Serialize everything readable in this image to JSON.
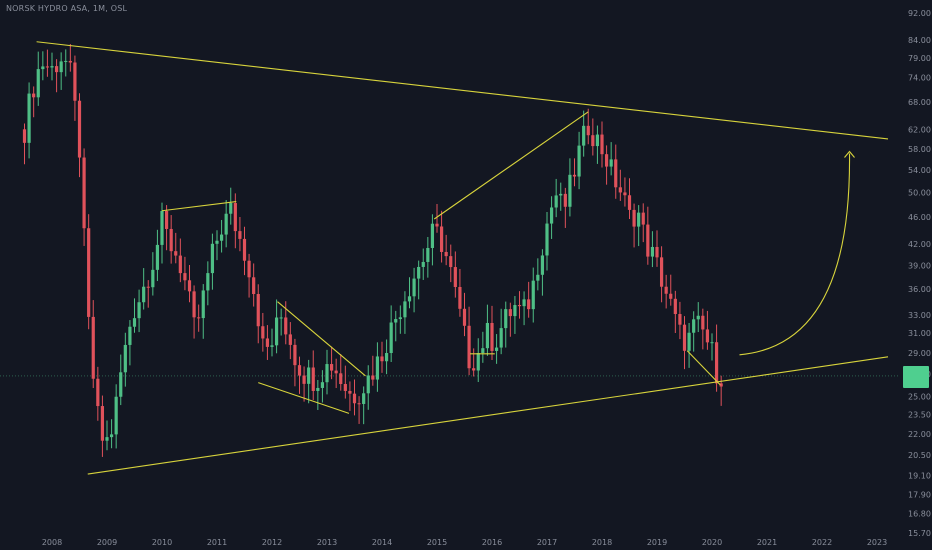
{
  "header": {
    "title": "NORSK HYDRO ASA, 1M, OSL"
  },
  "colors": {
    "background": "#131722",
    "up": "#4fbf86",
    "down": "#e0525b",
    "trendline": "#d8d43c",
    "price_line": "#4fbf86"
  },
  "chart_data": {
    "type": "candlestick",
    "title": "NORSK HYDRO ASA, 1M, OSL",
    "x_tick_labels": [
      "2008",
      "2009",
      "2010",
      "2011",
      "2012",
      "2013",
      "2014",
      "2015",
      "2016",
      "2017",
      "2018",
      "2019",
      "2020",
      "2021",
      "2022",
      "2023"
    ],
    "y_tick_labels": [
      "92.00",
      "84.00",
      "79.00",
      "74.00",
      "68.00",
      "62.00",
      "58.00",
      "54.00",
      "50.00",
      "46.00",
      "42.00",
      "39.00",
      "36.00",
      "33.00",
      "31.00",
      "29.00",
      "27.00",
      "25.00",
      "23.50",
      "22.00",
      "20.50",
      "19.10",
      "17.90",
      "16.80",
      "15.70"
    ],
    "y_scale": "log",
    "current_price": 26.8,
    "anchors": [
      {
        "t": 2007.5,
        "p": 62
      },
      {
        "t": 2007.62,
        "p": 70
      },
      {
        "t": 2007.8,
        "p": 78
      },
      {
        "t": 2008.0,
        "p": 76
      },
      {
        "t": 2008.2,
        "p": 80
      },
      {
        "t": 2008.35,
        "p": 74
      },
      {
        "t": 2008.5,
        "p": 58
      },
      {
        "t": 2008.65,
        "p": 33
      },
      {
        "t": 2008.8,
        "p": 24
      },
      {
        "t": 2008.95,
        "p": 21
      },
      {
        "t": 2009.1,
        "p": 22.5
      },
      {
        "t": 2009.25,
        "p": 27
      },
      {
        "t": 2009.45,
        "p": 33
      },
      {
        "t": 2009.65,
        "p": 36
      },
      {
        "t": 2009.85,
        "p": 40
      },
      {
        "t": 2010.0,
        "p": 45
      },
      {
        "t": 2010.15,
        "p": 42
      },
      {
        "t": 2010.3,
        "p": 40
      },
      {
        "t": 2010.45,
        "p": 36
      },
      {
        "t": 2010.6,
        "p": 31
      },
      {
        "t": 2010.75,
        "p": 35
      },
      {
        "t": 2010.9,
        "p": 40
      },
      {
        "t": 2011.05,
        "p": 44
      },
      {
        "t": 2011.25,
        "p": 47
      },
      {
        "t": 2011.4,
        "p": 43
      },
      {
        "t": 2011.55,
        "p": 40
      },
      {
        "t": 2011.7,
        "p": 35
      },
      {
        "t": 2011.85,
        "p": 29
      },
      {
        "t": 2012.0,
        "p": 30
      },
      {
        "t": 2012.15,
        "p": 33
      },
      {
        "t": 2012.3,
        "p": 31
      },
      {
        "t": 2012.45,
        "p": 28
      },
      {
        "t": 2012.6,
        "p": 27
      },
      {
        "t": 2012.8,
        "p": 26.5
      },
      {
        "t": 2012.95,
        "p": 27.5
      },
      {
        "t": 2013.1,
        "p": 28
      },
      {
        "t": 2013.3,
        "p": 26
      },
      {
        "t": 2013.45,
        "p": 25
      },
      {
        "t": 2013.6,
        "p": 25.5
      },
      {
        "t": 2013.8,
        "p": 27
      },
      {
        "t": 2014.0,
        "p": 29
      },
      {
        "t": 2014.2,
        "p": 32
      },
      {
        "t": 2014.4,
        "p": 35
      },
      {
        "t": 2014.6,
        "p": 38
      },
      {
        "t": 2014.75,
        "p": 40
      },
      {
        "t": 2014.95,
        "p": 44
      },
      {
        "t": 2015.1,
        "p": 42
      },
      {
        "t": 2015.25,
        "p": 38
      },
      {
        "t": 2015.45,
        "p": 32
      },
      {
        "t": 2015.6,
        "p": 28
      },
      {
        "t": 2015.75,
        "p": 29
      },
      {
        "t": 2015.9,
        "p": 31
      },
      {
        "t": 2016.05,
        "p": 30
      },
      {
        "t": 2016.2,
        "p": 32
      },
      {
        "t": 2016.4,
        "p": 34
      },
      {
        "t": 2016.55,
        "p": 33
      },
      {
        "t": 2016.7,
        "p": 35
      },
      {
        "t": 2016.85,
        "p": 40
      },
      {
        "t": 2017.0,
        "p": 45
      },
      {
        "t": 2017.15,
        "p": 50
      },
      {
        "t": 2017.3,
        "p": 47
      },
      {
        "t": 2017.45,
        "p": 52
      },
      {
        "t": 2017.6,
        "p": 58
      },
      {
        "t": 2017.75,
        "p": 63
      },
      {
        "t": 2017.9,
        "p": 60
      },
      {
        "t": 2018.05,
        "p": 57
      },
      {
        "t": 2018.2,
        "p": 53
      },
      {
        "t": 2018.35,
        "p": 50
      },
      {
        "t": 2018.5,
        "p": 46
      },
      {
        "t": 2018.65,
        "p": 47
      },
      {
        "t": 2018.8,
        "p": 42
      },
      {
        "t": 2018.95,
        "p": 40
      },
      {
        "t": 2019.1,
        "p": 37
      },
      {
        "t": 2019.25,
        "p": 34
      },
      {
        "t": 2019.4,
        "p": 31
      },
      {
        "t": 2019.55,
        "p": 30
      },
      {
        "t": 2019.7,
        "p": 32
      },
      {
        "t": 2019.85,
        "p": 31
      },
      {
        "t": 2020.0,
        "p": 29
      },
      {
        "t": 2020.1,
        "p": 27
      },
      {
        "t": 2020.2,
        "p": 26.8
      }
    ],
    "trendlines": [
      {
        "name": "upper",
        "from": {
          "t": 2007.72,
          "p": 83.5
        },
        "to": {
          "t": 2023.2,
          "p": 60.0
        }
      },
      {
        "name": "lower",
        "from": {
          "t": 2008.65,
          "p": 19.2
        },
        "to": {
          "t": 2023.2,
          "p": 28.6
        }
      },
      {
        "name": "flag-2010",
        "from": {
          "t": 2010.0,
          "p": 47.0
        },
        "to": {
          "t": 2011.35,
          "p": 48.5
        }
      },
      {
        "name": "wedge-upper",
        "from": {
          "t": 2012.1,
          "p": 34.5
        },
        "to": {
          "t": 2013.7,
          "p": 26.8
        }
      },
      {
        "name": "wedge-lower",
        "from": {
          "t": 2011.75,
          "p": 26.2
        },
        "to": {
          "t": 2013.4,
          "p": 23.6
        }
      },
      {
        "name": "rise-2015",
        "from": {
          "t": 2014.95,
          "p": 45.7
        },
        "to": {
          "t": 2017.75,
          "p": 65.8
        }
      },
      {
        "name": "base-2015",
        "from": {
          "t": 2015.6,
          "p": 28.9
        },
        "to": {
          "t": 2016.05,
          "p": 28.9
        }
      },
      {
        "name": "drop-2019",
        "from": {
          "t": 2019.55,
          "p": 29.2
        },
        "to": {
          "t": 2020.15,
          "p": 26.0
        }
      }
    ],
    "projection_arrow": {
      "from": {
        "t": 2020.5,
        "p": 28.8
      },
      "to": {
        "t": 2022.5,
        "p": 57.5
      },
      "direction": "up"
    }
  }
}
